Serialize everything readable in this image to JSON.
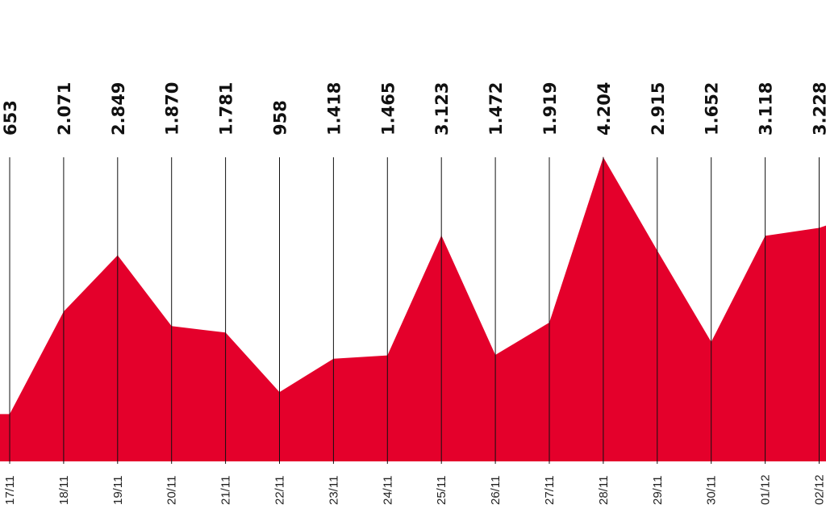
{
  "chart_data": {
    "type": "area",
    "title": "",
    "xlabel": "",
    "ylabel": "",
    "categories": [
      "17/11",
      "18/11",
      "19/11",
      "20/11",
      "21/11",
      "22/11",
      "23/11",
      "24/11",
      "25/11",
      "26/11",
      "27/11",
      "28/11",
      "29/11",
      "30/11",
      "01/12",
      "02/12"
    ],
    "value_labels": [
      "653",
      "2.071",
      "2.849",
      "1.870",
      "1.781",
      "958",
      "1.418",
      "1.465",
      "3.123",
      "1.472",
      "1.919",
      "4.204",
      "2.915",
      "1.652",
      "3.118",
      "3.228"
    ],
    "values": [
      653,
      2071,
      2849,
      1870,
      1781,
      958,
      1418,
      1465,
      3123,
      1472,
      1919,
      4204,
      2915,
      1652,
      3118,
      3228
    ],
    "ylim": [
      0,
      4204
    ],
    "grid": "vertical",
    "colors": {
      "fill": "#e4002b",
      "lines": "#111111",
      "text": "#111111"
    }
  }
}
